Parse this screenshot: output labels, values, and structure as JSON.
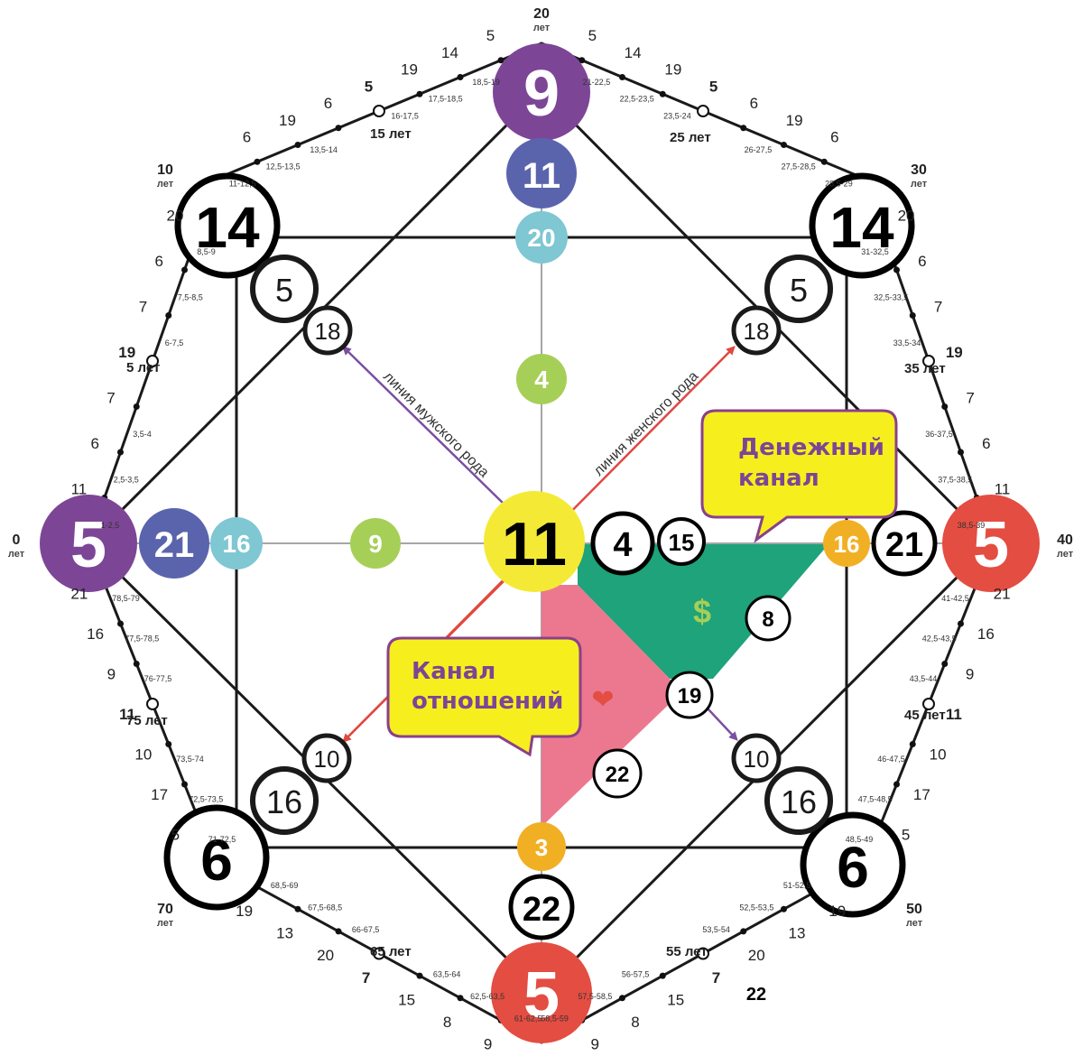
{
  "colors": {
    "purple": "#7d4596",
    "blue": "#5a64ad",
    "teal": "#7ec7d3",
    "lime": "#a6cf58",
    "yellow": "#f4ea35",
    "red": "#e44d42",
    "orange": "#f1b024",
    "green": "#1ea37a",
    "pink": "#ec7890",
    "callout": "#f6ef1d",
    "callout_border": "#8b3f8c",
    "line_female": "#e1483f",
    "line_male": "#7b4fa0"
  },
  "corners": {
    "top": {
      "value": "9",
      "age": "20",
      "unit": "лет"
    },
    "left": {
      "value": "5",
      "age": "0",
      "unit": "лет"
    },
    "right": {
      "value": "5",
      "age": "40",
      "unit": "лет"
    },
    "bottom": {
      "value": "5"
    },
    "top_left": {
      "value": "14",
      "age": "10",
      "unit": "лет"
    },
    "top_right": {
      "value": "14",
      "age": "30",
      "unit": "лет"
    },
    "bottom_left": {
      "value": "6",
      "age": "70",
      "unit": "лет"
    },
    "bottom_right": {
      "value": "6",
      "age": "50",
      "unit": "лет"
    }
  },
  "inner": {
    "top_1": "11",
    "top_2": "20",
    "top_3": "4",
    "left_1": "21",
    "left_2": "16",
    "left_3": "9",
    "center": "11",
    "right_a": "4",
    "right_b": "15",
    "right_c": "16",
    "right_d": "21",
    "bottom_a": "22",
    "bottom_b": "3",
    "tl_outer": "5",
    "tl_inner": "18",
    "tr_outer": "5",
    "tr_inner": "18",
    "bl_outer": "16",
    "bl_inner": "10",
    "br_outer": "16",
    "br_inner": "10",
    "money_dot": "8",
    "chan_mid": "19",
    "rel_dot": "22"
  },
  "labels": {
    "male_line": "линия мужского рода",
    "female_line": "линия женского рода",
    "money_channel_1": "Денежный",
    "money_channel_2": "канал",
    "relation_channel_1": "Канал",
    "relation_channel_2": "отношений",
    "dollar": "$",
    "heart": "❤"
  },
  "ages": {
    "a5": "5 лет",
    "a15": "15 лет",
    "a25": "25 лет",
    "a35": "35 лет",
    "a45": "45 лет",
    "a55": "55 лет",
    "a65": "65 лет",
    "a75": "75 лет"
  },
  "extra": {
    "bottom_22": "22"
  },
  "outer_numbers": {
    "top_left_edge": [
      "5",
      "14",
      "19",
      "5",
      "6",
      "19",
      "6"
    ],
    "top_right_edge": [
      "5",
      "14",
      "19",
      "5",
      "6",
      "19",
      "6"
    ],
    "right_upper_edge": [
      "20",
      "6",
      "7",
      "19",
      "7",
      "6",
      "11"
    ],
    "left_upper_edge": [
      "20",
      "6",
      "7",
      "19",
      "7",
      "6",
      "11"
    ],
    "right_lower_edge": [
      "21",
      "16",
      "9",
      "11",
      "10",
      "17",
      "5"
    ],
    "left_lower_edge": [
      "21",
      "16",
      "9",
      "11",
      "10",
      "17",
      "5"
    ],
    "bottom_right_edge": [
      "19",
      "13",
      "20",
      "7",
      "15",
      "8",
      "9"
    ],
    "bottom_left_edge": [
      "19",
      "13",
      "20",
      "7",
      "15",
      "8",
      "9"
    ]
  },
  "ranges": {
    "top_left_edge": [
      "18,5-19",
      "17,5-18,5",
      "16-17,5",
      "13,5-14",
      "12,5-13,5",
      "11-12,5"
    ],
    "top_right_edge": [
      "21-22,5",
      "22,5-23,5",
      "23,5-24",
      "26-27,5",
      "27,5-28,5",
      "28,5-29"
    ],
    "left_upper_edge": [
      "8,5-9",
      "7,5-8,5",
      "6-7,5",
      "3,5-4",
      "2,5-3,5",
      "1-2,5"
    ],
    "right_upper_edge": [
      "31-32,5",
      "32,5-33,5",
      "33,5-34",
      "36-37,5",
      "37,5-38,5",
      "38,5-39"
    ],
    "left_lower_edge": [
      "78,5-79",
      "77,5-78,5",
      "76-77,5",
      "73,5-74",
      "72,5-73,5",
      "71-72,5"
    ],
    "right_lower_edge": [
      "41-42,5",
      "42,5-43,5",
      "43,5-44",
      "46-47,5",
      "47,5-48,5",
      "48,5-49"
    ],
    "bottom_left_edge": [
      "68,5-69",
      "67,5-68,5",
      "66-67,5",
      "63,5-64",
      "62,5-63,5",
      "61-62,5"
    ],
    "bottom_right_edge": [
      "51-52,5",
      "52,5-53,5",
      "53,5-54",
      "56-57,5",
      "57,5-58,5",
      "58,5-59"
    ]
  }
}
